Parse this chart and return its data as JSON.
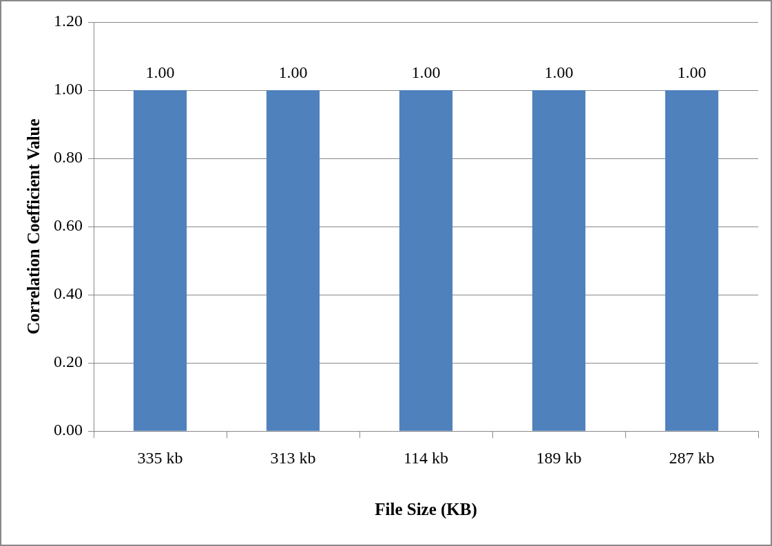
{
  "chart_data": {
    "type": "bar",
    "xlabel": "File Size (KB)",
    "ylabel": "Correlation Coefficient Value",
    "categories": [
      "335 kb",
      "313 kb",
      "114 kb",
      "189 kb",
      "287 kb"
    ],
    "values": [
      1,
      1,
      1,
      1,
      1
    ],
    "color": "#4f81bd",
    "value_labels": [
      "1.00",
      "1.00",
      "1.00",
      "1.00",
      "1.00"
    ],
    "ylim": [
      0,
      1.2
    ],
    "yticks": [
      {
        "value": 0,
        "label": "0.00"
      },
      {
        "value": 0.2,
        "label": "0.20"
      },
      {
        "value": 0.4,
        "label": "0.40"
      },
      {
        "value": 0.6,
        "label": "0.60"
      },
      {
        "value": 0.8,
        "label": "0.80"
      },
      {
        "value": 1,
        "label": "1.00"
      },
      {
        "value": 1.2,
        "label": "1.20"
      }
    ],
    "grid": "y",
    "legend": false
  }
}
